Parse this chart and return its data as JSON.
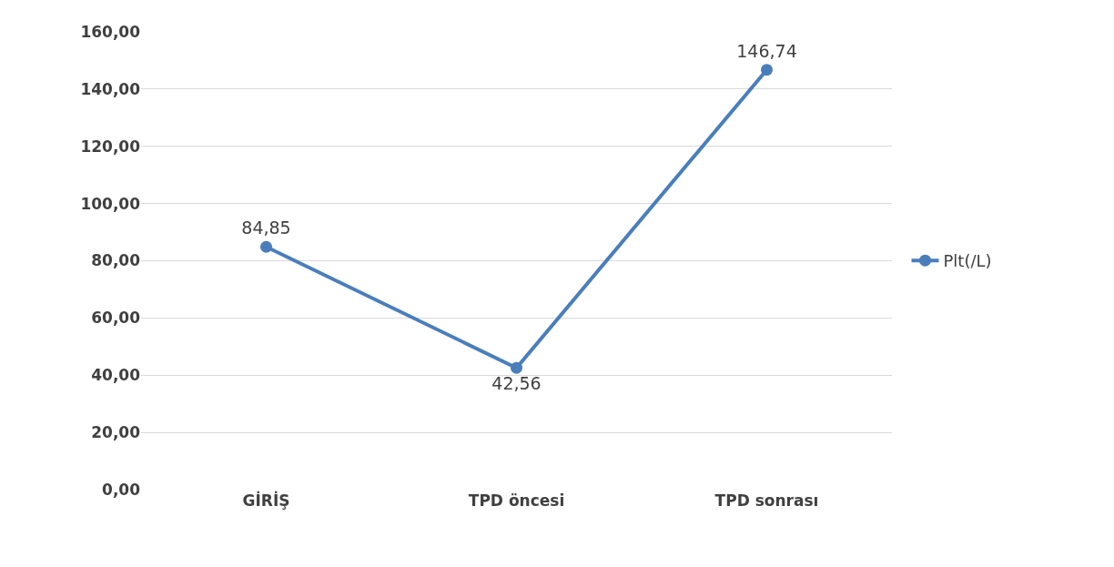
{
  "chart_data": {
    "type": "line",
    "categories": [
      "GİRİŞ",
      "TPD öncesi",
      "TPD sonrası"
    ],
    "series": [
      {
        "name": "Plt(/L)",
        "color": "#4a7ebb",
        "values": [
          84.85,
          42.56,
          146.74
        ],
        "value_labels": [
          "84,85",
          "42,56",
          "146,74"
        ]
      }
    ],
    "ylim": [
      0,
      160
    ],
    "yticks": [
      {
        "value": 0,
        "label": "0,00"
      },
      {
        "value": 20,
        "label": "20,00"
      },
      {
        "value": 40,
        "label": "40,00"
      },
      {
        "value": 60,
        "label": "60,00"
      },
      {
        "value": 80,
        "label": "80,00"
      },
      {
        "value": 100,
        "label": "100,00"
      },
      {
        "value": 120,
        "label": "120,00"
      },
      {
        "value": 140,
        "label": "140,00"
      },
      {
        "value": 160,
        "label": "160,00"
      }
    ],
    "grid": "y",
    "legend": "right",
    "marker": "circle",
    "line_style": "solid"
  }
}
